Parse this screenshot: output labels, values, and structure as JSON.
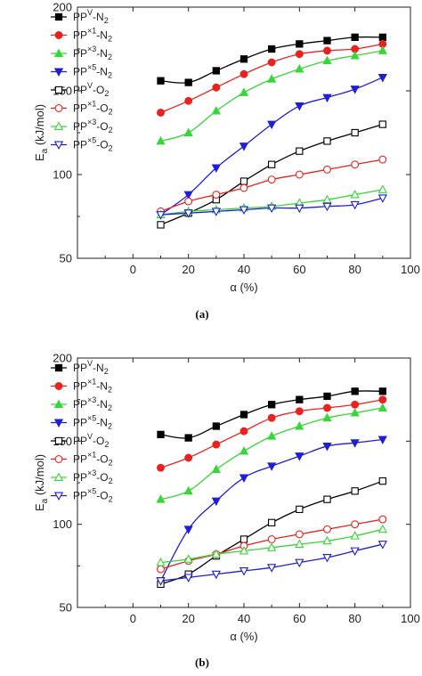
{
  "chart_data": [
    {
      "type": "line",
      "panel_label": "(a)",
      "xlabel": "α (%)",
      "ylabel": "E_a (kJ/mol)",
      "ylabel_main": "E",
      "ylabel_sub": "a",
      "ylabel_rest": " (kJ/mol)",
      "xlim": [
        -20,
        100
      ],
      "ylim": [
        50,
        200
      ],
      "xticks": [
        0,
        20,
        40,
        60,
        80,
        100
      ],
      "yticks": [
        50,
        100,
        150,
        200
      ],
      "grid": false,
      "legend_position": "top-left",
      "x": [
        10,
        20,
        30,
        40,
        50,
        60,
        70,
        80,
        90
      ],
      "series": [
        {
          "name": "PP^V-N_2",
          "label_parts": [
            "PP",
            "V",
            "-N",
            "2"
          ],
          "color": "#000000",
          "marker": "square-filled",
          "values": [
            156,
            155,
            162,
            169,
            175,
            178,
            180,
            182,
            182
          ]
        },
        {
          "name": "PP^×1-N_2",
          "label_parts": [
            "PP",
            "×1",
            "-N",
            "2"
          ],
          "color": "#e8231f",
          "marker": "circle-filled",
          "values": [
            137,
            144,
            152,
            160,
            167,
            172,
            174,
            175,
            178
          ]
        },
        {
          "name": "PP^×3-N_2",
          "label_parts": [
            "PP",
            "×3",
            "-N",
            "2"
          ],
          "color": "#38d638",
          "marker": "triangle-up-filled",
          "values": [
            120,
            125,
            138,
            149,
            157,
            163,
            168,
            171,
            174
          ]
        },
        {
          "name": "PP^×5-N_2",
          "label_parts": [
            "PP",
            "×5",
            "-N",
            "2"
          ],
          "color": "#1f1fd6",
          "marker": "triangle-down-filled",
          "values": [
            76,
            88,
            104,
            117,
            130,
            141,
            146,
            151,
            158
          ]
        },
        {
          "name": "PP^V-O_2",
          "label_parts": [
            "PP",
            "V",
            "-O",
            "2"
          ],
          "color": "#000000",
          "marker": "square-open",
          "values": [
            70,
            77,
            85,
            96,
            106,
            114,
            120,
            125,
            130
          ]
        },
        {
          "name": "PP^×1-O_2",
          "label_parts": [
            "PP",
            "×1",
            "-O",
            "2"
          ],
          "color": "#e8231f",
          "marker": "circle-open",
          "values": [
            78,
            84,
            88,
            92,
            97,
            100,
            103,
            106,
            109
          ]
        },
        {
          "name": "PP^×3-O_2",
          "label_parts": [
            "PP",
            "×3",
            "-O",
            "2"
          ],
          "color": "#38d638",
          "marker": "triangle-up-open",
          "values": [
            76,
            78,
            79,
            80,
            81,
            83,
            85,
            88,
            91
          ]
        },
        {
          "name": "PP^×5-O_2",
          "label_parts": [
            "PP",
            "×5",
            "-O",
            "2"
          ],
          "color": "#1f1fd6",
          "marker": "triangle-down-open",
          "values": [
            76,
            77,
            78,
            79,
            80,
            80,
            81,
            82,
            86
          ]
        }
      ]
    },
    {
      "type": "line",
      "panel_label": "(b)",
      "xlabel": "α (%)",
      "ylabel": "E_a (kJ/mol)",
      "ylabel_main": "E",
      "ylabel_sub": "a",
      "ylabel_rest": " (kJ/mol)",
      "xlim": [
        -20,
        100
      ],
      "ylim": [
        50,
        200
      ],
      "xticks": [
        0,
        20,
        40,
        60,
        80,
        100
      ],
      "yticks": [
        50,
        100,
        150,
        200
      ],
      "grid": false,
      "legend_position": "top-left",
      "x": [
        10,
        20,
        30,
        40,
        50,
        60,
        70,
        80,
        90
      ],
      "series": [
        {
          "name": "PP^V-N_2",
          "label_parts": [
            "PP",
            "V",
            "-N",
            "2"
          ],
          "color": "#000000",
          "marker": "square-filled",
          "values": [
            154,
            152,
            159,
            166,
            172,
            175,
            177,
            180,
            180
          ]
        },
        {
          "name": "PP^×1-N_2",
          "label_parts": [
            "PP",
            "×1",
            "-N",
            "2"
          ],
          "color": "#e8231f",
          "marker": "circle-filled",
          "values": [
            134,
            140,
            148,
            156,
            164,
            168,
            170,
            172,
            175
          ]
        },
        {
          "name": "PP^×3-N_2",
          "label_parts": [
            "PP",
            "×3",
            "-N",
            "2"
          ],
          "color": "#38d638",
          "marker": "triangle-up-filled",
          "values": [
            115,
            120,
            133,
            144,
            153,
            159,
            164,
            167,
            170
          ]
        },
        {
          "name": "PP^×5-N_2",
          "label_parts": [
            "PP",
            "×5",
            "-N",
            "2"
          ],
          "color": "#1f1fd6",
          "marker": "triangle-down-filled",
          "values": [
            66,
            97,
            114,
            128,
            135,
            141,
            147,
            149,
            151
          ]
        },
        {
          "name": "PP^V-O_2",
          "label_parts": [
            "PP",
            "V",
            "-O",
            "2"
          ],
          "color": "#000000",
          "marker": "square-open",
          "values": [
            64,
            70,
            81,
            91,
            101,
            109,
            115,
            120,
            126
          ]
        },
        {
          "name": "PP^×1-O_2",
          "label_parts": [
            "PP",
            "×1",
            "-O",
            "2"
          ],
          "color": "#e8231f",
          "marker": "circle-open",
          "values": [
            73,
            78,
            82,
            87,
            91,
            94,
            97,
            100,
            103
          ]
        },
        {
          "name": "PP^×3-O_2",
          "label_parts": [
            "PP",
            "×3",
            "-O",
            "2"
          ],
          "color": "#38d638",
          "marker": "triangle-up-open",
          "values": [
            77,
            79,
            82,
            84,
            86,
            88,
            90,
            93,
            97
          ]
        },
        {
          "name": "PP^×5-O_2",
          "label_parts": [
            "PP",
            "×5",
            "-O",
            "2"
          ],
          "color": "#1f1fd6",
          "marker": "triangle-down-open",
          "values": [
            66,
            68,
            70,
            72,
            74,
            77,
            80,
            84,
            88
          ]
        }
      ]
    }
  ]
}
